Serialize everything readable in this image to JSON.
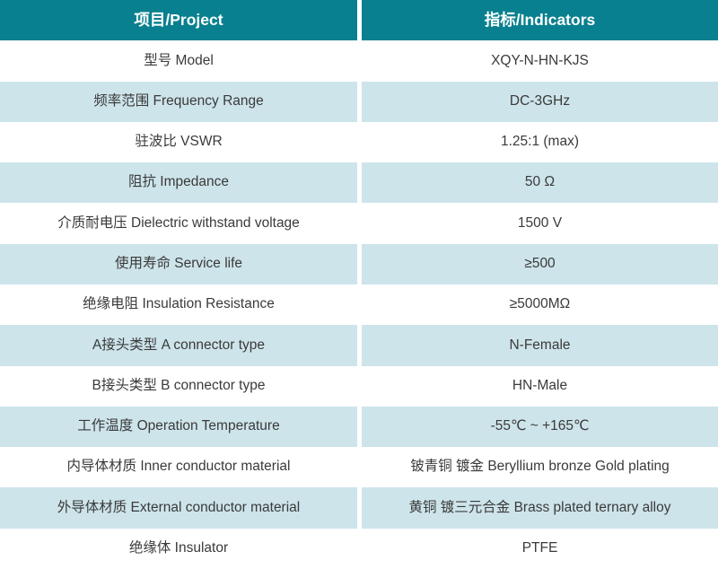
{
  "table_title": "Product specification table",
  "colors": {
    "header_bg": "#08808F",
    "row_alt_bg": "#CDE4EA",
    "text": "#3A3A3A",
    "header_text": "#FFFFFF"
  },
  "header": {
    "project": "项目/Project",
    "indicators": "指标/Indicators"
  },
  "rows": [
    {
      "project": "型号 Model",
      "indicator": "XQY-N-HN-KJS"
    },
    {
      "project": "频率范围 Frequency Range",
      "indicator": "DC-3GHz"
    },
    {
      "project": "驻波比 VSWR",
      "indicator": "1.25:1 (max)"
    },
    {
      "project": "阻抗 Impedance",
      "indicator": "50 Ω"
    },
    {
      "project": "介质耐电压 Dielectric withstand voltage",
      "indicator": "1500 V"
    },
    {
      "project": "使用寿命 Service life",
      "indicator": "≥500"
    },
    {
      "project": "绝缘电阻 Insulation Resistance",
      "indicator": "≥5000MΩ"
    },
    {
      "project": "A接头类型 A connector type",
      "indicator": "N-Female"
    },
    {
      "project": "B接头类型 B connector type",
      "indicator": "HN-Male"
    },
    {
      "project": "工作温度 Operation Temperature",
      "indicator": "-55℃ ~ +165℃"
    },
    {
      "project": "内导体材质 Inner conductor material",
      "indicator": "铍青铜 镀金 Beryllium bronze Gold plating"
    },
    {
      "project": "外导体材质 External conductor material",
      "indicator": "黄铜 镀三元合金 Brass plated ternary alloy"
    },
    {
      "project": "绝缘体 Insulator",
      "indicator": "PTFE"
    }
  ]
}
